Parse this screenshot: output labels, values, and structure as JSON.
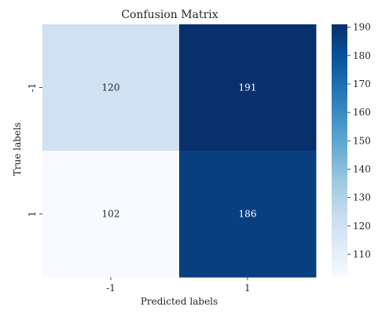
{
  "chart_data": {
    "type": "heatmap",
    "title": "Confusion Matrix",
    "xlabel": "Predicted labels",
    "ylabel": "True labels",
    "x_categories": [
      "-1",
      "1"
    ],
    "y_categories": [
      "-1",
      "1"
    ],
    "values": [
      [
        120,
        191
      ],
      [
        102,
        186
      ]
    ],
    "colormap": "Blues",
    "colorbar": {
      "range": [
        102,
        191
      ],
      "ticks": [
        110,
        120,
        130,
        140,
        150,
        160,
        170,
        180,
        190
      ]
    },
    "colors": {
      "low": "#f7fbff",
      "high": "#08306b",
      "text_on_light": "#262626",
      "text_on_dark": "#ffffff"
    }
  }
}
